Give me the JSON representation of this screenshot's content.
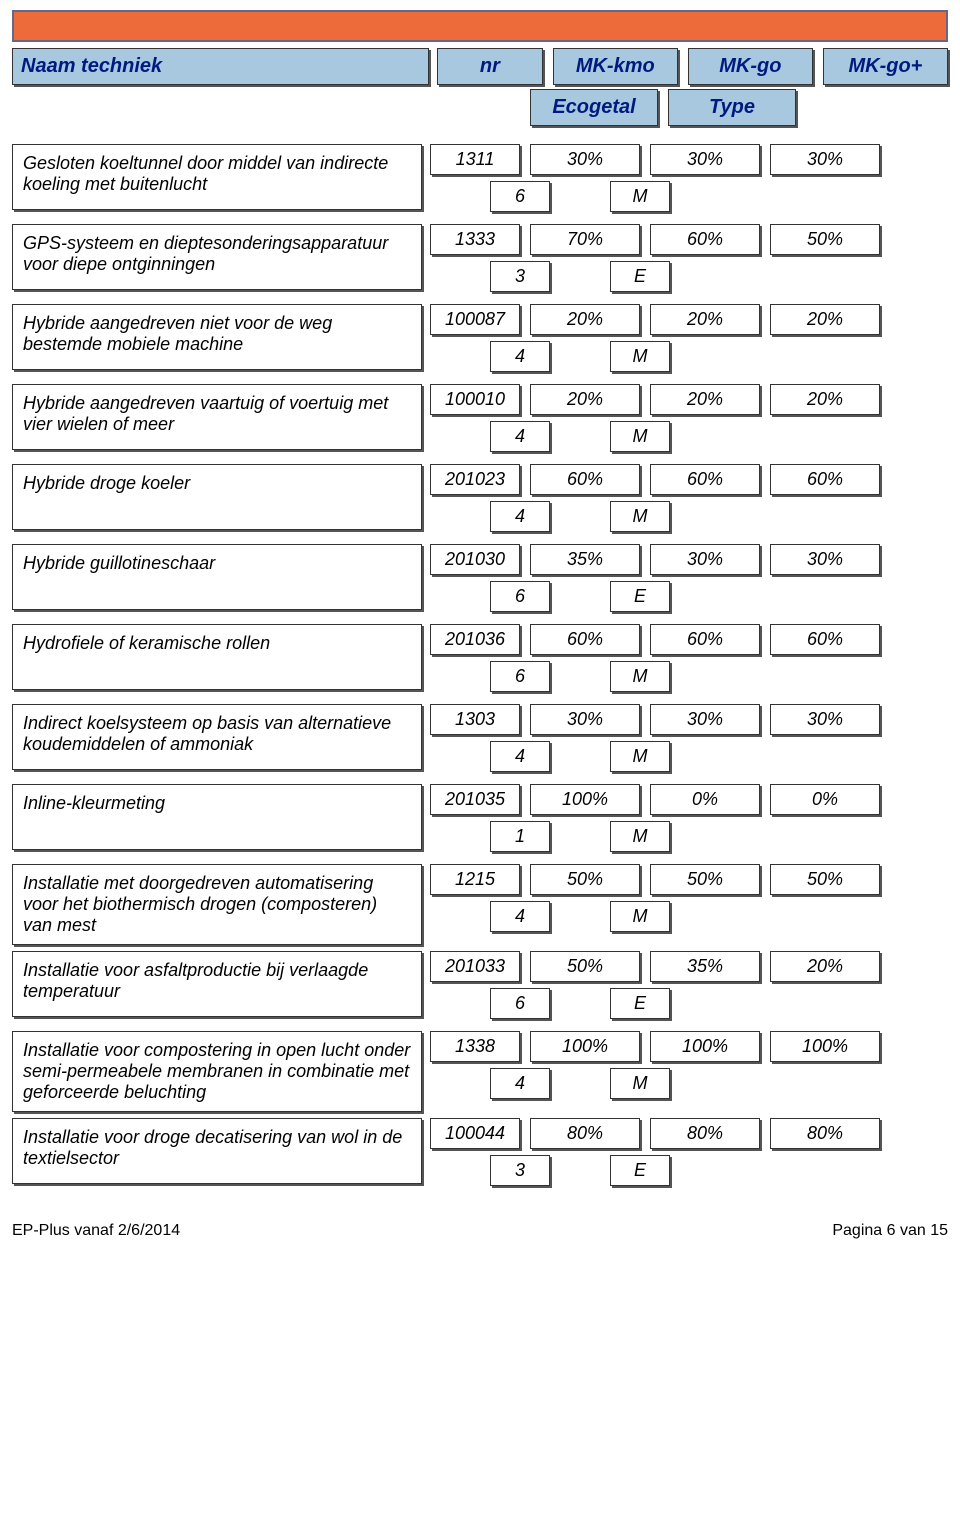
{
  "top_bar_color": "#ed6b3a",
  "headers": {
    "name": "Naam techniek",
    "nr": "nr",
    "kmo": "MK-kmo",
    "go": "MK-go",
    "gop": "MK-go+",
    "eco": "Ecogetal",
    "type": "Type"
  },
  "rows": [
    {
      "desc": "Gesloten koeltunnel door middel van indirecte koeling met buitenlucht",
      "nr": "1311",
      "kmo": "30%",
      "go": "30%",
      "gop": "30%",
      "eco": "6",
      "type": "M"
    },
    {
      "desc": "GPS-systeem en dieptesonderingsapparatuur voor diepe ontginningen",
      "nr": "1333",
      "kmo": "70%",
      "go": "60%",
      "gop": "50%",
      "eco": "3",
      "type": "E"
    },
    {
      "desc": "Hybride aangedreven niet voor de weg bestemde mobiele machine",
      "nr": "100087",
      "kmo": "20%",
      "go": "20%",
      "gop": "20%",
      "eco": "4",
      "type": "M"
    },
    {
      "desc": "Hybride aangedreven vaartuig of voertuig met vier wielen of meer",
      "nr": "100010",
      "kmo": "20%",
      "go": "20%",
      "gop": "20%",
      "eco": "4",
      "type": "M"
    },
    {
      "desc": "Hybride droge koeler",
      "nr": "201023",
      "kmo": "60%",
      "go": "60%",
      "gop": "60%",
      "eco": "4",
      "type": "M"
    },
    {
      "desc": "Hybride guillotineschaar",
      "nr": "201030",
      "kmo": "35%",
      "go": "30%",
      "gop": "30%",
      "eco": "6",
      "type": "E"
    },
    {
      "desc": "Hydrofiele of keramische rollen",
      "nr": "201036",
      "kmo": "60%",
      "go": "60%",
      "gop": "60%",
      "eco": "6",
      "type": "M"
    },
    {
      "desc": "Indirect koelsysteem op basis van alternatieve koudemiddelen of ammoniak",
      "nr": "1303",
      "kmo": "30%",
      "go": "30%",
      "gop": "30%",
      "eco": "4",
      "type": "M"
    },
    {
      "desc": "Inline-kleurmeting",
      "nr": "201035",
      "kmo": "100%",
      "go": "0%",
      "gop": "0%",
      "eco": "1",
      "type": "M"
    },
    {
      "desc": "Installatie met doorgedreven automatisering voor het biothermisch drogen (composteren) van mest",
      "nr": "1215",
      "kmo": "50%",
      "go": "50%",
      "gop": "50%",
      "eco": "4",
      "type": "M"
    },
    {
      "desc": "Installatie voor asfaltproductie bij verlaagde temperatuur",
      "nr": "201033",
      "kmo": "50%",
      "go": "35%",
      "gop": "20%",
      "eco": "6",
      "type": "E"
    },
    {
      "desc": "Installatie voor compostering in open lucht onder semi-permeabele membranen in combinatie met geforceerde beluchting",
      "nr": "1338",
      "kmo": "100%",
      "go": "100%",
      "gop": "100%",
      "eco": "4",
      "type": "M"
    },
    {
      "desc": "Installatie voor droge decatisering van wol in de textielsector",
      "nr": "100044",
      "kmo": "80%",
      "go": "80%",
      "gop": "80%",
      "eco": "3",
      "type": "E"
    }
  ],
  "footer": {
    "left": "EP-Plus vanaf 2/6/2014",
    "right": "Pagina 6 van 15"
  }
}
